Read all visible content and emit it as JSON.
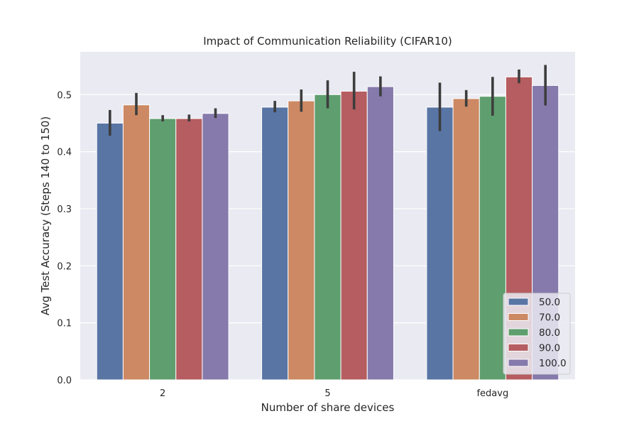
{
  "chart_data": {
    "type": "bar",
    "title": "Impact of Communication Reliability (CIFAR10)",
    "xlabel": "Number of share devices",
    "ylabel": "Avg Test Accuracy (Steps 140 to 150)",
    "categories": [
      "2",
      "5",
      "fedavg"
    ],
    "ylim": [
      0,
      0.575
    ],
    "yticks": [
      "0.0",
      "0.1",
      "0.2",
      "0.3",
      "0.4",
      "0.5"
    ],
    "grid": true,
    "legend_position": "lower right",
    "series": [
      {
        "name": "50.0",
        "color": "#5875a4",
        "values": [
          0.45,
          0.478,
          0.478
        ],
        "err_low": [
          0.428,
          0.469,
          0.436
        ],
        "err_high": [
          0.473,
          0.489,
          0.521
        ]
      },
      {
        "name": "70.0",
        "color": "#cc8963",
        "values": [
          0.482,
          0.489,
          0.493
        ],
        "err_low": [
          0.464,
          0.47,
          0.479
        ],
        "err_high": [
          0.503,
          0.509,
          0.508
        ]
      },
      {
        "name": "80.0",
        "color": "#5f9e6e",
        "values": [
          0.458,
          0.5,
          0.497
        ],
        "err_low": [
          0.453,
          0.476,
          0.463
        ],
        "err_high": [
          0.464,
          0.525,
          0.531
        ]
      },
      {
        "name": "90.0",
        "color": "#b55d60",
        "values": [
          0.458,
          0.506,
          0.531
        ],
        "err_low": [
          0.453,
          0.474,
          0.52
        ],
        "err_high": [
          0.465,
          0.54,
          0.544
        ]
      },
      {
        "name": "100.0",
        "color": "#857aab",
        "values": [
          0.467,
          0.514,
          0.516
        ],
        "err_low": [
          0.459,
          0.497,
          0.481
        ],
        "err_high": [
          0.476,
          0.532,
          0.552
        ]
      }
    ]
  }
}
